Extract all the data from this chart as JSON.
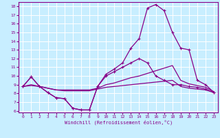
{
  "xlabel": "Windchill (Refroidissement éolien,°C)",
  "bg_color": "#c8eeff",
  "line_color": "#880088",
  "grid_color": "#ffffff",
  "xlim": [
    -0.5,
    23.5
  ],
  "ylim": [
    5.8,
    18.5
  ],
  "xticks": [
    0,
    1,
    2,
    3,
    4,
    5,
    6,
    7,
    8,
    9,
    10,
    11,
    12,
    13,
    14,
    15,
    16,
    17,
    18,
    19,
    20,
    21,
    22,
    23
  ],
  "yticks": [
    6,
    7,
    8,
    9,
    10,
    11,
    12,
    13,
    14,
    15,
    16,
    17,
    18
  ],
  "line1_x": [
    0,
    1,
    2,
    3,
    4,
    5,
    6,
    7,
    8,
    9,
    10,
    11,
    12,
    13,
    14,
    15,
    16,
    17,
    18,
    19,
    20,
    21,
    22,
    23
  ],
  "line1_y": [
    8.8,
    9.9,
    8.8,
    8.1,
    7.5,
    7.4,
    6.3,
    6.1,
    6.1,
    8.8,
    10.2,
    10.8,
    11.5,
    13.2,
    14.3,
    17.8,
    18.2,
    17.5,
    15.0,
    13.2,
    13.0,
    9.5,
    9.0,
    8.1
  ],
  "line2_x": [
    0,
    1,
    2,
    3,
    4,
    5,
    6,
    7,
    8,
    9,
    10,
    11,
    12,
    13,
    14,
    15,
    16,
    17,
    18,
    19,
    20,
    21,
    22,
    23
  ],
  "line2_y": [
    8.8,
    9.9,
    8.8,
    8.1,
    7.5,
    7.4,
    6.3,
    6.1,
    6.1,
    8.8,
    10.0,
    10.5,
    11.0,
    11.5,
    12.0,
    11.5,
    10.0,
    9.5,
    9.0,
    9.0,
    8.8,
    8.7,
    8.5,
    8.1
  ],
  "line3_x": [
    0,
    1,
    2,
    3,
    4,
    5,
    6,
    7,
    8,
    9,
    10,
    11,
    12,
    13,
    14,
    15,
    16,
    17,
    18,
    19,
    20,
    21,
    22,
    23
  ],
  "line3_y": [
    8.8,
    9.0,
    8.8,
    8.6,
    8.4,
    8.4,
    8.4,
    8.4,
    8.4,
    8.6,
    9.0,
    9.2,
    9.5,
    9.8,
    10.0,
    10.3,
    10.6,
    10.9,
    11.2,
    9.5,
    9.1,
    8.9,
    8.7,
    8.2
  ],
  "line4_x": [
    0,
    1,
    2,
    3,
    4,
    5,
    6,
    7,
    8,
    9,
    10,
    11,
    12,
    13,
    14,
    15,
    16,
    17,
    18,
    19,
    20,
    21,
    22,
    23
  ],
  "line4_y": [
    8.8,
    8.9,
    8.8,
    8.6,
    8.4,
    8.3,
    8.3,
    8.3,
    8.3,
    8.5,
    8.7,
    8.8,
    8.9,
    9.0,
    9.1,
    9.2,
    9.3,
    9.4,
    9.5,
    8.8,
    8.6,
    8.5,
    8.4,
    8.1
  ]
}
